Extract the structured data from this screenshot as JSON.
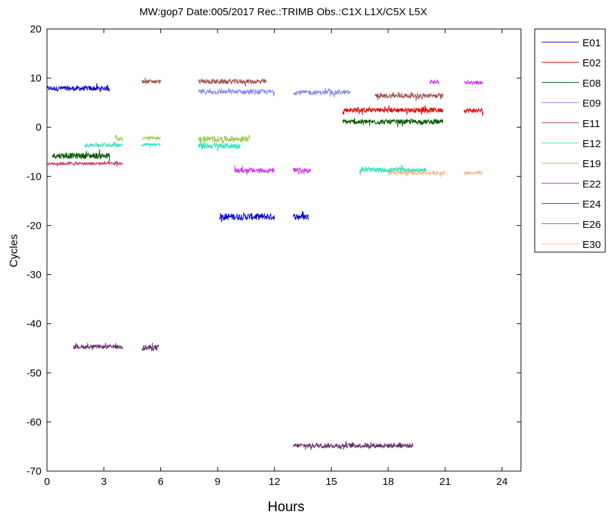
{
  "chart_data": {
    "type": "line",
    "title": "MW:gop7 Date:005/2017 Rec.:TRIMB Obs.:C1X L1X/C5X L5X",
    "xlabel": "Hours",
    "ylabel": "Cycles",
    "xlim": [
      0,
      25
    ],
    "ylim": [
      -70,
      20
    ],
    "xticks": [
      0,
      3,
      6,
      9,
      12,
      15,
      18,
      21,
      24
    ],
    "yticks": [
      20,
      10,
      0,
      -10,
      -20,
      -30,
      -40,
      -50,
      -60,
      -70
    ],
    "grid": false,
    "legend_position": "outside-right-top",
    "series": [
      {
        "name": "E01",
        "color": "#0000cc",
        "segments": [
          {
            "x": [
              0,
              3.3
            ],
            "y": 7.9,
            "noise": 0.5
          },
          {
            "x": [
              9.1,
              12.0
            ],
            "y": -18.2,
            "noise": 0.7
          },
          {
            "x": [
              13.0,
              13.8
            ],
            "y": -18.2,
            "noise": 0.6
          }
        ]
      },
      {
        "name": "E02",
        "color": "#e00000",
        "segments": [
          {
            "x": [
              15.6,
              20.9
            ],
            "y": 3.5,
            "noise": 0.5
          },
          {
            "x": [
              22.0,
              23.0
            ],
            "y": 3.4,
            "noise": 0.5
          }
        ]
      },
      {
        "name": "E08",
        "color": "#005500",
        "segments": [
          {
            "x": [
              0.3,
              3.3
            ],
            "y": -5.8,
            "noise": 0.6
          },
          {
            "x": [
              15.6,
              20.9
            ],
            "y": 1.1,
            "noise": 0.5
          }
        ]
      },
      {
        "name": "E09",
        "color": "#8a8aee",
        "segments": [
          {
            "x": [
              8.0,
              12.0
            ],
            "y": 7.2,
            "noise": 0.5
          },
          {
            "x": [
              13.0,
              16.0
            ],
            "y": 7.1,
            "noise": 0.5
          }
        ]
      },
      {
        "name": "E11",
        "color": "#a0524d",
        "segments": [
          {
            "x": [
              5.0,
              6.0
            ],
            "y": 9.3,
            "noise": 0.4
          },
          {
            "x": [
              8.0,
              11.6
            ],
            "y": 9.3,
            "noise": 0.5
          },
          {
            "x": [
              17.3,
              20.9
            ],
            "y": 6.4,
            "noise": 0.5
          }
        ]
      },
      {
        "name": "E12",
        "color": "#30e0c0",
        "segments": [
          {
            "x": [
              2.0,
              4.0
            ],
            "y": -3.6,
            "noise": 0.4
          },
          {
            "x": [
              5.0,
              6.0
            ],
            "y": -3.5,
            "noise": 0.3
          },
          {
            "x": [
              8.0,
              10.2
            ],
            "y": -3.8,
            "noise": 0.6
          },
          {
            "x": [
              16.5,
              20.0
            ],
            "y": -8.7,
            "noise": 0.5
          }
        ]
      },
      {
        "name": "E19",
        "color": "#99cc55",
        "segments": [
          {
            "x": [
              3.6,
              4.0
            ],
            "y": -2.4,
            "noise": 0.4
          },
          {
            "x": [
              5.0,
              6.0
            ],
            "y": -2.2,
            "noise": 0.3
          },
          {
            "x": [
              8.0,
              10.7
            ],
            "y": -2.4,
            "noise": 0.6
          }
        ]
      },
      {
        "name": "E22",
        "color": "#cc33ee",
        "segments": [
          {
            "x": [
              9.9,
              12.0
            ],
            "y": -8.8,
            "noise": 0.5
          },
          {
            "x": [
              13.0,
              13.9
            ],
            "y": -8.9,
            "noise": 0.7
          },
          {
            "x": [
              20.2,
              20.7
            ],
            "y": 9.2,
            "noise": 0.4
          },
          {
            "x": [
              22.0,
              23.0
            ],
            "y": 9.1,
            "noise": 0.3
          }
        ]
      },
      {
        "name": "E24",
        "color": "#6a2a6a",
        "segments": [
          {
            "x": [
              1.4,
              4.0
            ],
            "y": -44.7,
            "noise": 0.4
          },
          {
            "x": [
              5.0,
              5.9
            ],
            "y": -44.9,
            "noise": 0.6
          },
          {
            "x": [
              13.0,
              19.3
            ],
            "y": -64.8,
            "noise": 0.5
          }
        ]
      },
      {
        "name": "E26",
        "color": "#c8306e",
        "segments": [
          {
            "x": [
              0,
              4.0
            ],
            "y": -7.4,
            "noise": 0.3
          }
        ]
      },
      {
        "name": "E30",
        "color": "#f4b983",
        "segments": [
          {
            "x": [
              18.0,
              21.0
            ],
            "y": -9.3,
            "noise": 0.4
          },
          {
            "x": [
              22.0,
              23.0
            ],
            "y": -9.3,
            "noise": 0.3
          }
        ]
      }
    ]
  }
}
